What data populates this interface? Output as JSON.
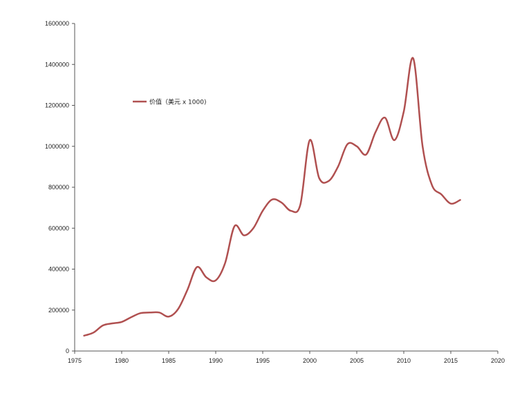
{
  "chart_data": {
    "type": "line",
    "title": "",
    "xlabel": "",
    "ylabel": "",
    "xlim": [
      1975,
      2020
    ],
    "ylim": [
      0,
      1600000
    ],
    "x_ticks": [
      1975,
      1980,
      1985,
      1990,
      1995,
      2000,
      2005,
      2010,
      2015,
      2020
    ],
    "y_ticks": [
      0,
      200000,
      400000,
      600000,
      800000,
      1000000,
      1200000,
      1400000,
      1600000
    ],
    "grid": false,
    "legend_position": "upper-left",
    "series": [
      {
        "name": "价值（美元 x 1000)",
        "color": "#b05050",
        "x": [
          1976,
          1977,
          1978,
          1979,
          1980,
          1981,
          1982,
          1983,
          1984,
          1985,
          1986,
          1987,
          1988,
          1989,
          1990,
          1991,
          1992,
          1993,
          1994,
          1995,
          1996,
          1997,
          1998,
          1999,
          2000,
          2001,
          2002,
          2003,
          2004,
          2005,
          2006,
          2007,
          2008,
          2009,
          2010,
          2011,
          2012,
          2013,
          2014,
          2015,
          2016
        ],
        "y": [
          75000,
          90000,
          125000,
          135000,
          142000,
          165000,
          185000,
          188000,
          188000,
          168000,
          205000,
          300000,
          410000,
          360000,
          345000,
          430000,
          610000,
          565000,
          600000,
          685000,
          740000,
          725000,
          685000,
          715000,
          1030000,
          845000,
          830000,
          900000,
          1010000,
          1000000,
          960000,
          1070000,
          1140000,
          1030000,
          1170000,
          1430000,
          1000000,
          810000,
          765000,
          720000,
          738000
        ]
      }
    ]
  }
}
